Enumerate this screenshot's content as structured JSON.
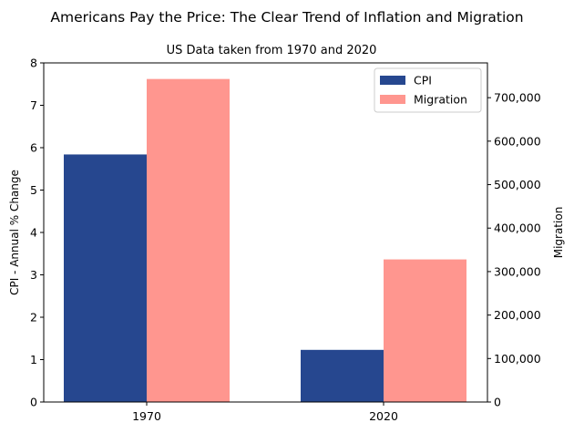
{
  "chart_data": {
    "type": "bar",
    "title": "Americans Pay the Price:  The Clear Trend of Inflation and Migration",
    "subtitle": "US Data taken from 1970 and 2020",
    "categories": [
      "1970",
      "2020"
    ],
    "ylabel_left": "CPI - Annual % Change",
    "ylabel_right": "Migration",
    "ylim_left": [
      0,
      8
    ],
    "ylim_right": [
      0,
      780000
    ],
    "yticks_left": [
      "0",
      "1",
      "2",
      "3",
      "4",
      "5",
      "6",
      "7",
      "8"
    ],
    "yticks_right": [
      "0",
      "100,000",
      "200,000",
      "300,000",
      "400,000",
      "500,000",
      "600,000",
      "700,000"
    ],
    "series": [
      {
        "name": "CPI",
        "axis": "left",
        "color": "#26478f",
        "values": [
          5.84,
          1.23
        ]
      },
      {
        "name": "Migration",
        "axis": "right",
        "color": "#ff968f",
        "values": [
          743000,
          328000
        ]
      }
    ],
    "legend_position": "top-right",
    "grid": false
  }
}
